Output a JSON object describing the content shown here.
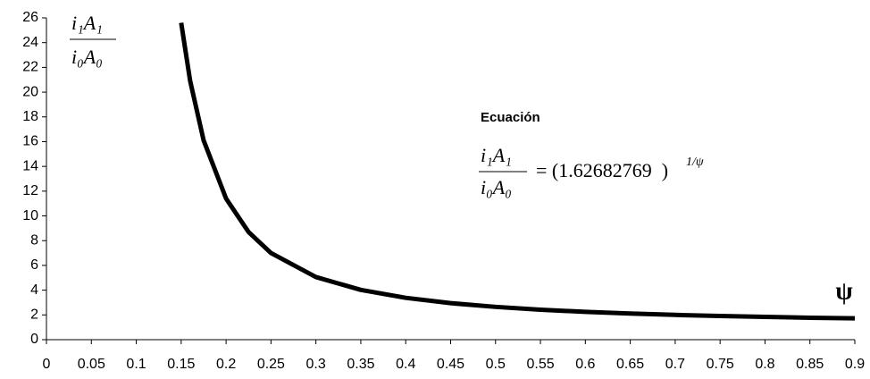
{
  "chart_data": {
    "type": "line",
    "x_label": "ψ",
    "y_label_numerator": "i₁A₁",
    "y_label_denominator": "i₀A₀",
    "equation_title": "Ecuación",
    "equation_lhs_numerator": "i₁A₁",
    "equation_lhs_denominator": "i₀A₀",
    "equation_rhs": "= (1.62682769  )",
    "equation_exponent": "1/ψ",
    "x": [
      0.15,
      0.16,
      0.175,
      0.2,
      0.225,
      0.25,
      0.3,
      0.35,
      0.4,
      0.45,
      0.5,
      0.55,
      0.6,
      0.65,
      0.7,
      0.75,
      0.8,
      0.85,
      0.9
    ],
    "series": [
      {
        "color": "#000000",
        "values": [
          25.6,
          20.9,
          16.1,
          11.4,
          8.7,
          7.0,
          5.06,
          4.02,
          3.38,
          2.95,
          2.65,
          2.42,
          2.25,
          2.11,
          2.0,
          1.91,
          1.84,
          1.77,
          1.72
        ]
      }
    ],
    "xlim": [
      0,
      0.9
    ],
    "ylim": [
      0,
      26
    ],
    "xticks": [
      0,
      0.05,
      0.1,
      0.15,
      0.2,
      0.25,
      0.3,
      0.35,
      0.4,
      0.45,
      0.5,
      0.55,
      0.6,
      0.65,
      0.7,
      0.75,
      0.8,
      0.85,
      0.9
    ],
    "yticks": [
      0,
      2,
      4,
      6,
      8,
      10,
      12,
      14,
      16,
      18,
      20,
      22,
      24,
      26
    ],
    "grid": false
  }
}
